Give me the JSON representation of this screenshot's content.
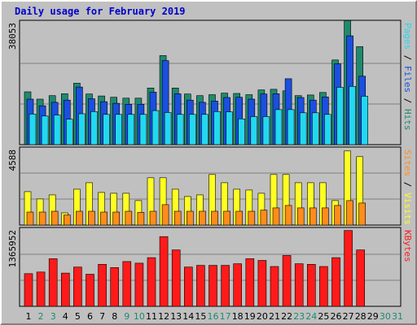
{
  "chart_data": {
    "type": "bar",
    "title": "Daily usage for February 2019",
    "categories": [
      "1",
      "2",
      "3",
      "4",
      "5",
      "6",
      "7",
      "8",
      "9",
      "10",
      "11",
      "12",
      "13",
      "14",
      "15",
      "16",
      "17",
      "18",
      "19",
      "20",
      "21",
      "22",
      "23",
      "24",
      "25",
      "26",
      "27",
      "28",
      "29",
      "30",
      "31"
    ],
    "weekend_days": [
      "2",
      "3",
      "9",
      "10",
      "16",
      "17",
      "23",
      "24",
      "30",
      "31"
    ],
    "colors": {
      "hits": "#1f8a6e",
      "files": "#1a4fe0",
      "pages": "#22d8f0",
      "visits": "#ffff22",
      "sites": "#ff8c1a",
      "kbytes": "#ff1a1a",
      "weekday_label": "#000000",
      "weekend_label": "#1f8a6e",
      "grid": "#808080"
    },
    "panels": [
      {
        "id": "pages-files-hits",
        "ymax": 38053,
        "ymax_label": "38053",
        "right_label": [
          {
            "text": "Pages",
            "color": "#22d8f0"
          },
          {
            "text": " / ",
            "color": "#000000"
          },
          {
            "text": "Files",
            "color": "#1a4fe0"
          },
          {
            "text": " / ",
            "color": "#000000"
          },
          {
            "text": "Hits",
            "color": "#1f8a6e"
          }
        ],
        "series": [
          {
            "name": "Hits",
            "color": "#1f8a6e",
            "values": [
              16600,
              14300,
              15400,
              16000,
              19300,
              15900,
              15300,
              14900,
              14600,
              14600,
              17800,
              28000,
              17800,
              15900,
              15400,
              15700,
              16200,
              16100,
              15700,
              17200,
              17400,
              16900,
              15400,
              15600,
              16400,
              26600,
              39000,
              30800,
              0,
              0,
              0
            ]
          },
          {
            "name": "Files",
            "color": "#1a4fe0",
            "values": [
              14300,
              12200,
              13300,
              14000,
              18100,
              14400,
              13500,
              13000,
              12700,
              12700,
              16500,
              26400,
              16000,
              14000,
              13300,
              13700,
              14800,
              14900,
              14300,
              15900,
              16000,
              20700,
              14800,
              14000,
              15000,
              25400,
              34200,
              21500,
              0,
              0,
              0
            ]
          },
          {
            "name": "Pages",
            "color": "#22d8f0",
            "values": [
              9600,
              9000,
              9300,
              8000,
              9700,
              10400,
              9500,
              9500,
              9500,
              9500,
              10700,
              10100,
              9500,
              9500,
              9500,
              10400,
              10300,
              8100,
              8800,
              8800,
              11000,
              11000,
              10000,
              10000,
              9500,
              18000,
              18300,
              15200,
              0,
              0,
              0
            ]
          }
        ]
      },
      {
        "id": "sites-visits",
        "ymax": 4588,
        "ymax_label": "4588",
        "right_label": [
          {
            "text": "Sites",
            "color": "#ff8c1a"
          },
          {
            "text": " / ",
            "color": "#000000"
          },
          {
            "text": "Visits",
            "color": "#ffff22"
          }
        ],
        "series": [
          {
            "name": "Visits",
            "color": "#ffff22",
            "values": [
              2050,
              1600,
              1850,
              750,
              2200,
              2600,
              2000,
              1950,
              1950,
              1500,
              2900,
              2900,
              2200,
              1750,
              1850,
              3100,
              2600,
              2200,
              2150,
              1950,
              3100,
              3100,
              2600,
              2600,
              2600,
              1500,
              4550,
              4200,
              0,
              0,
              0
            ]
          },
          {
            "name": "Sites",
            "color": "#ff8c1a",
            "values": [
              800,
              800,
              850,
              620,
              850,
              850,
              800,
              800,
              850,
              780,
              850,
              1250,
              850,
              850,
              850,
              850,
              850,
              850,
              850,
              920,
              1050,
              1200,
              1050,
              1050,
              1050,
              1200,
              1500,
              1350,
              0,
              0,
              0
            ]
          }
        ]
      },
      {
        "id": "kbytes",
        "ymax": 1365952,
        "ymax_label": "1365952",
        "right_label": [
          {
            "text": "KBytes",
            "color": "#ff1a1a"
          }
        ],
        "series": [
          {
            "name": "KBytes",
            "color": "#ff1a1a",
            "values": [
              590000,
              620000,
              860000,
              600000,
              710000,
              580000,
              760000,
              700000,
              810000,
              780000,
              880000,
              1260000,
              1020000,
              710000,
              740000,
              740000,
              740000,
              770000,
              860000,
              830000,
              720000,
              920000,
              770000,
              760000,
              720000,
              880000,
              1370000,
              1020000,
              0,
              0,
              0
            ]
          }
        ]
      }
    ]
  }
}
